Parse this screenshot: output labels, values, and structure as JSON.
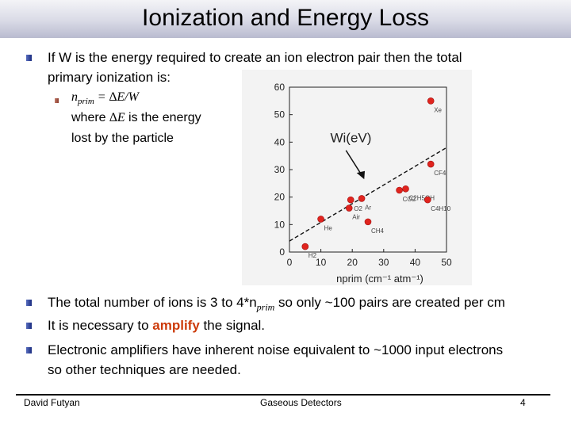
{
  "slide": {
    "title": "Ionization and Energy Loss",
    "bullet1_line1": "If W is the energy required to create an ion electron pair then the total",
    "bullet1_line2": "primary ionization is:",
    "formula": "nprim = ∆E/W",
    "formula_n": "n",
    "formula_sub": "prim",
    "formula_rest": " = ∆E/W",
    "where_line1_a": "where ",
    "where_line1_b": "∆E",
    "where_line1_c": " is the energy",
    "where_line2": "lost by the particle",
    "bullet2_a": "The total number of ions is 3 to 4*n",
    "bullet2_sub": "prim",
    "bullet2_b": " so only ~100 pairs are created per cm",
    "bullet3_a": "It is necessary to ",
    "bullet3_amp": "amplify",
    "bullet3_b": " the signal.",
    "bullet4_line1": "Electronic amplifiers have inherent noise equivalent to ~1000 input electrons",
    "bullet4_line2": "so other techniques are needed."
  },
  "footer": {
    "author": "David Futyan",
    "center": "Gaseous Detectors",
    "page": "4"
  },
  "colors": {
    "bullet_blue": "#1a2c80",
    "amplify": "#cc3a0a",
    "points": "#e0241e"
  },
  "chart_data": {
    "type": "scatter",
    "title": "",
    "xlabel": "nprim (cm⁻¹ atm⁻¹)",
    "ylabel": "",
    "annotation": "Wi(eV)",
    "xlim": [
      0,
      50
    ],
    "ylim": [
      0,
      60
    ],
    "xticks": [
      "0",
      "10",
      "20",
      "30",
      "40",
      "50"
    ],
    "yticks": [
      "0",
      "10",
      "20",
      "30",
      "40",
      "50",
      "60"
    ],
    "points": [
      {
        "label": "H2",
        "x": 5,
        "y": 2
      },
      {
        "label": "He",
        "x": 10,
        "y": 12
      },
      {
        "label": "Air",
        "x": 19,
        "y": 16
      },
      {
        "label": "O2",
        "x": 19.5,
        "y": 19
      },
      {
        "label": "Ar",
        "x": 23,
        "y": 19.5
      },
      {
        "label": "CH4",
        "x": 25,
        "y": 11
      },
      {
        "label": "CO2",
        "x": 35,
        "y": 22.5
      },
      {
        "label": "C2H5OH",
        "x": 37,
        "y": 23
      },
      {
        "label": "C4H10",
        "x": 44,
        "y": 19
      },
      {
        "label": "CF4",
        "x": 45,
        "y": 32
      },
      {
        "label": "Xe",
        "x": 45,
        "y": 55
      }
    ],
    "trend_line": [
      [
        0,
        4
      ],
      [
        50,
        38
      ]
    ],
    "grid": false
  }
}
